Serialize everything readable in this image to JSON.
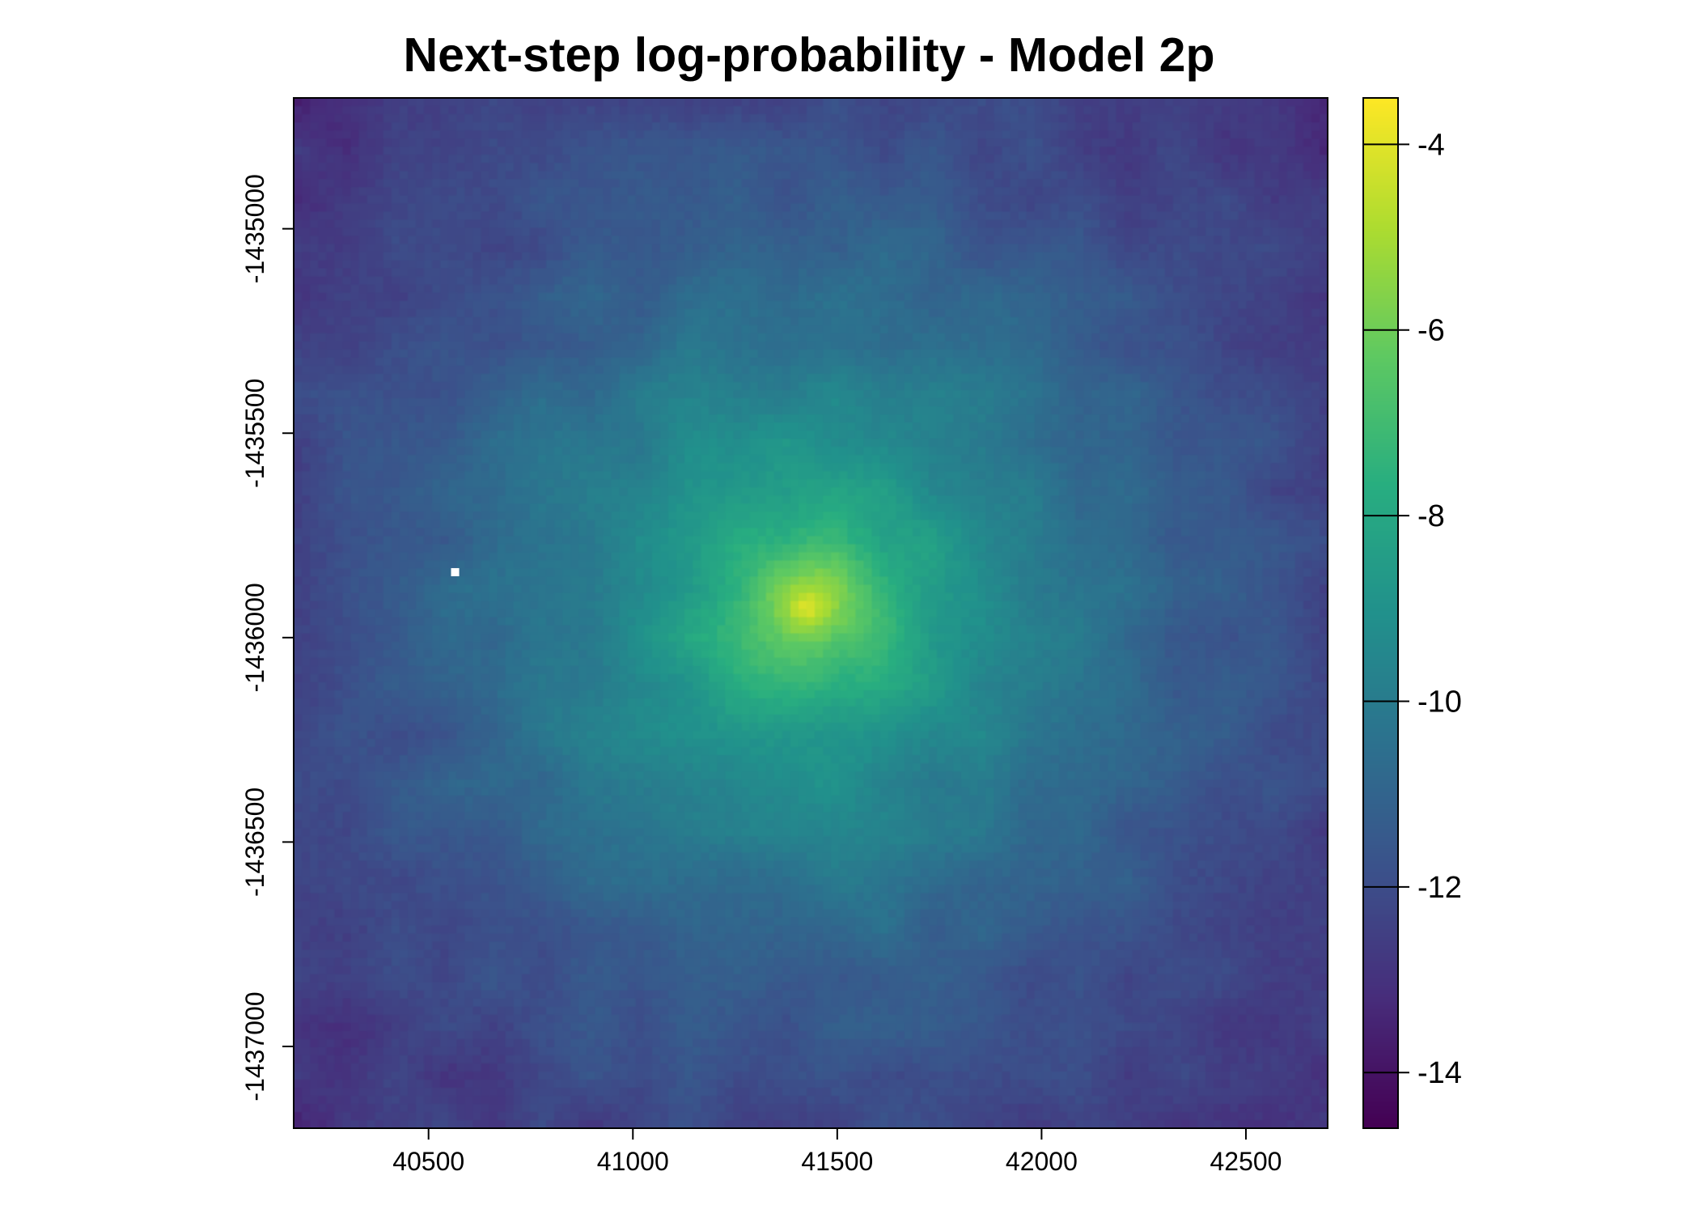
{
  "chart_data": {
    "type": "heatmap",
    "title": "Next-step log-probability - Model 2p",
    "xlabel": "",
    "ylabel": "",
    "xlim": [
      40170,
      42700
    ],
    "ylim": [
      -1437200,
      -1434680
    ],
    "x_ticks": [
      40500,
      41000,
      41500,
      42000,
      42500
    ],
    "x_tick_labels": [
      "40500",
      "41000",
      "41500",
      "42000",
      "42500"
    ],
    "y_ticks": [
      -1435000,
      -1435500,
      -1436000,
      -1436500,
      -1437000
    ],
    "y_tick_labels": [
      "-1435000",
      "-1435500",
      "-1436000",
      "-1436500",
      "-1437000"
    ],
    "grid": false,
    "colorbar": {
      "range": [
        -14.6,
        -3.5
      ],
      "ticks": [
        -4,
        -6,
        -8,
        -10,
        -12,
        -14
      ],
      "tick_labels": [
        "-4",
        "-6",
        "-8",
        "-10",
        "-12",
        "-14"
      ],
      "colormap": "viridis",
      "colors": [
        "#440154",
        "#472d7b",
        "#3b528b",
        "#2c728e",
        "#21918c",
        "#28ae80",
        "#5ec962",
        "#addc30",
        "#fde725"
      ]
    },
    "field": {
      "peak_location": [
        41425,
        -1435930
      ],
      "peak_value": -3.9,
      "corner_value": -14.6,
      "missing_cell": [
        40565,
        -1435840
      ],
      "missing_cell_color": "#ffffff"
    }
  }
}
